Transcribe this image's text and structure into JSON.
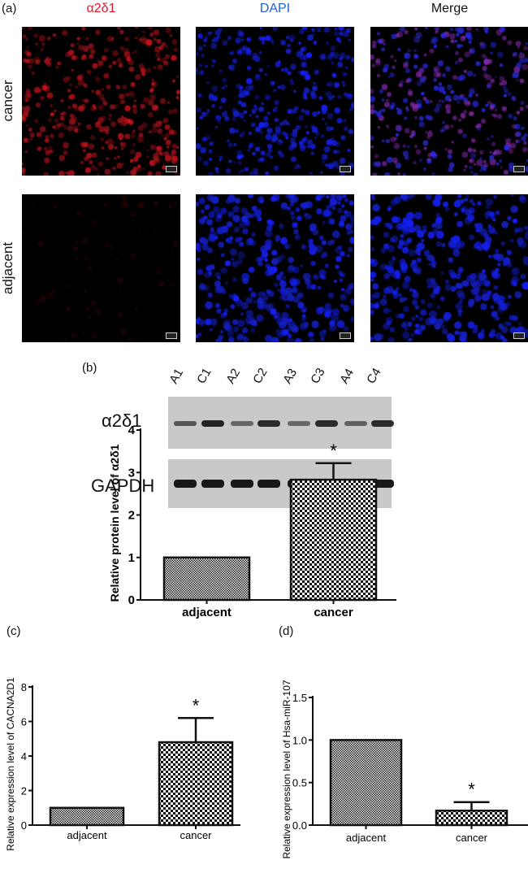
{
  "panel_a": {
    "label": "(a)",
    "columns": [
      {
        "title": "α2δ1",
        "color": "#e8182a"
      },
      {
        "title": "DAPI",
        "color": "#1f5fe0"
      },
      {
        "title": "Merge",
        "color": "#111111"
      }
    ],
    "rows": [
      "cancer",
      "adjacent"
    ]
  },
  "panel_b": {
    "label": "(b)",
    "lanes": [
      "A1",
      "C1",
      "A2",
      "C2",
      "A3",
      "C3",
      "A4",
      "C4"
    ],
    "blots": [
      {
        "name": "α2δ1",
        "band_intensity": [
          0.45,
          0.9,
          0.3,
          0.85,
          0.3,
          0.85,
          0.35,
          0.85
        ]
      },
      {
        "name": "GAPDH",
        "band_intensity": [
          1,
          1,
          1,
          1,
          1,
          1,
          1,
          1
        ]
      }
    ]
  },
  "panel_c": {
    "label": "(c)"
  },
  "panel_d": {
    "label": "(d)"
  },
  "chart_data": [
    {
      "type": "bar",
      "panel": "b",
      "categories": [
        "adjacent",
        "cancer"
      ],
      "values": [
        1.0,
        2.83
      ],
      "error_upper": [
        0,
        0.39
      ],
      "annotations": [
        "",
        "*"
      ],
      "ylabel": "Relative protein level of α2δ1",
      "ylim": [
        0,
        4
      ],
      "yticks": [
        "0",
        "1",
        "2",
        "3",
        "4"
      ]
    },
    {
      "type": "bar",
      "panel": "c",
      "categories": [
        "adjacent",
        "cancer"
      ],
      "values": [
        1.0,
        4.8
      ],
      "error_upper": [
        0,
        1.4
      ],
      "annotations": [
        "",
        "*"
      ],
      "ylabel": "Relative expression level of CACNA2D1",
      "ylim": [
        0,
        8
      ],
      "yticks": [
        "0",
        "2",
        "4",
        "6",
        "8"
      ]
    },
    {
      "type": "bar",
      "panel": "d",
      "categories": [
        "adjacent",
        "cancer"
      ],
      "values": [
        1.0,
        0.17
      ],
      "error_upper": [
        0,
        0.1
      ],
      "annotations": [
        "",
        "*"
      ],
      "ylabel": "Relative expression level of Hsa-miR-107",
      "ylim": [
        0,
        1.5
      ],
      "yticks": [
        "0.0",
        "0.5",
        "1.0",
        "1.5"
      ]
    }
  ]
}
